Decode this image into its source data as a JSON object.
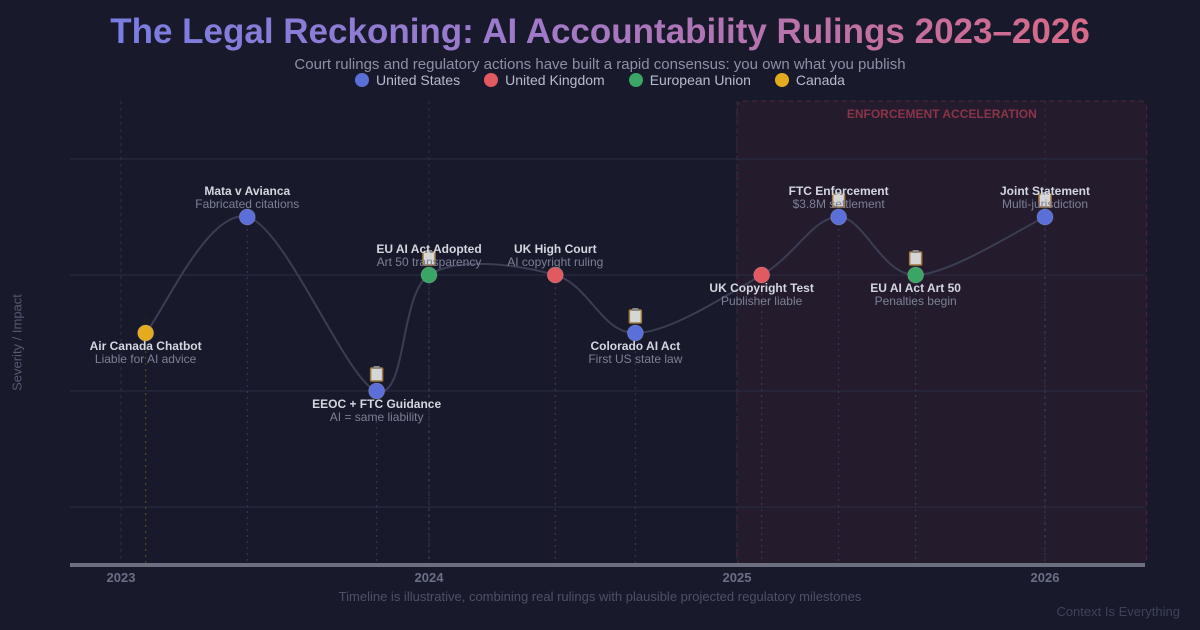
{
  "title": "The Legal Reckoning: AI Accountability Rulings 2023–2026",
  "subtitle": "Court rulings and regulatory actions have built a rapid consensus: you own what you publish",
  "footer": "Timeline is illustrative, combining real rulings with plausible projected regulatory milestones",
  "brand": "Context Is Everything",
  "colors": {
    "United States": "#5b6fd8",
    "United Kingdom": "#e05a60",
    "European Union": "#3aa565",
    "Canada": "#e3ac1f"
  },
  "chart_data": {
    "type": "line",
    "xlabel": "",
    "ylabel": "Severity / Impact",
    "xlim": [
      2022.84,
      2026.33
    ],
    "ylim": [
      0.5,
      4.5
    ],
    "x_ticks": [
      "2023",
      "2024",
      "2025",
      "2026"
    ],
    "grid": true,
    "legend": {
      "position": "top",
      "entries": [
        "United States",
        "United Kingdom",
        "European Union",
        "Canada"
      ]
    },
    "shaded_region": {
      "label": "ENFORCEMENT ACCELERATION",
      "x_start": 2025.0,
      "x_end": 2026.33
    },
    "points": [
      {
        "x": 2023.08,
        "y": 2.5,
        "label": "Air Canada Chatbot",
        "sub": "Liable for AI advice",
        "region": "Canada",
        "icon": "scales-icon",
        "pos": "below"
      },
      {
        "x": 2023.41,
        "y": 3.5,
        "label": "Mata v Avianca",
        "sub": "Fabricated citations",
        "region": "United States",
        "icon": "",
        "pos": "above"
      },
      {
        "x": 2023.83,
        "y": 2.0,
        "label": "EEOC + FTC Guidance",
        "sub": "AI = same liability",
        "region": "United States",
        "icon": "clipboard-icon",
        "pos": "below"
      },
      {
        "x": 2024.0,
        "y": 3.0,
        "label": "EU AI Act Adopted",
        "sub": "Art 50 transparency",
        "region": "European Union",
        "icon": "clipboard-icon",
        "pos": "above"
      },
      {
        "x": 2024.41,
        "y": 3.0,
        "label": "UK High Court",
        "sub": "AI copyright ruling",
        "region": "United Kingdom",
        "icon": "",
        "pos": "above"
      },
      {
        "x": 2024.67,
        "y": 2.5,
        "label": "Colorado AI Act",
        "sub": "First US state law",
        "region": "United States",
        "icon": "clipboard-icon",
        "pos": "below"
      },
      {
        "x": 2025.08,
        "y": 3.0,
        "label": "UK Copyright Test",
        "sub": "Publisher liable",
        "region": "United Kingdom",
        "icon": "scales-icon",
        "pos": "below"
      },
      {
        "x": 2025.33,
        "y": 3.5,
        "label": "FTC Enforcement",
        "sub": "$3.8M settlement",
        "region": "United States",
        "icon": "clipboard-icon",
        "pos": "above"
      },
      {
        "x": 2025.58,
        "y": 3.0,
        "label": "EU AI Act Art 50",
        "sub": "Penalties begin",
        "region": "European Union",
        "icon": "clipboard-icon",
        "pos": "below"
      },
      {
        "x": 2026.0,
        "y": 3.5,
        "label": "Joint Statement",
        "sub": "Multi-jurisdiction",
        "region": "United States",
        "icon": "clipboard-icon",
        "pos": "above"
      }
    ]
  }
}
